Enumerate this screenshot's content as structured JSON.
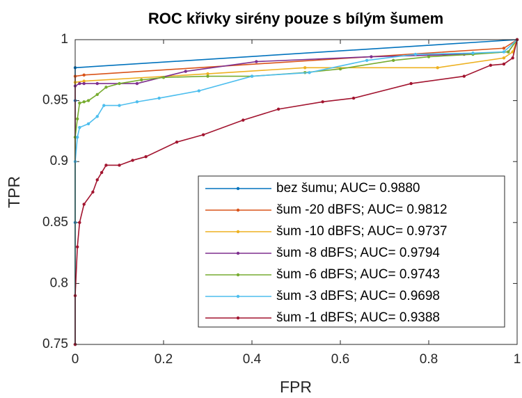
{
  "chart_data": {
    "type": "line",
    "title": "ROC křivky sirény pouze s bílým šumem",
    "xlabel": "FPR",
    "ylabel": "TPR",
    "xlim": [
      0,
      1
    ],
    "ylim": [
      0.75,
      1
    ],
    "xticks": [
      0,
      0.2,
      0.4,
      0.6,
      0.8,
      1
    ],
    "yticks": [
      0.75,
      0.8,
      0.85,
      0.9,
      0.95,
      1
    ],
    "grid": false,
    "legend_location": "southeast",
    "series": [
      {
        "name": "bez šumu; AUC= 0.9880",
        "color": "#0072BD",
        "x": [
          0,
          0,
          0,
          0,
          1
        ],
        "values": [
          0.75,
          0.85,
          0.95,
          0.977,
          1
        ]
      },
      {
        "name": "šum -20 dBFS; AUC= 0.9812",
        "color": "#D95319",
        "x": [
          0,
          0,
          0.02,
          0.97,
          1
        ],
        "values": [
          0.75,
          0.97,
          0.971,
          0.993,
          1
        ]
      },
      {
        "name": "šum -10 dBFS; AUC= 0.9737",
        "color": "#EDB120",
        "x": [
          0,
          0,
          0.02,
          0.3,
          0.52,
          0.82,
          0.97,
          0.99,
          1
        ],
        "values": [
          0.75,
          0.965,
          0.966,
          0.972,
          0.977,
          0.977,
          0.985,
          0.99,
          1
        ]
      },
      {
        "name": "šum -8 dBFS; AUC= 0.9794",
        "color": "#7E2F8E",
        "x": [
          0,
          0,
          0.01,
          0.02,
          0.05,
          0.14,
          0.25,
          0.41,
          0.67,
          0.88,
          0.98,
          1
        ],
        "values": [
          0.75,
          0.962,
          0.964,
          0.964,
          0.964,
          0.964,
          0.974,
          0.982,
          0.986,
          0.988,
          0.99,
          1
        ]
      },
      {
        "name": "šum -6 dBFS; AUC= 0.9743",
        "color": "#77AC30",
        "x": [
          0,
          0,
          0.005,
          0.01,
          0.02,
          0.03,
          0.05,
          0.07,
          0.1,
          0.15,
          0.2,
          0.3,
          0.4,
          0.52,
          0.6,
          0.72,
          0.8,
          0.9,
          0.98,
          1
        ],
        "values": [
          0.75,
          0.92,
          0.935,
          0.948,
          0.949,
          0.95,
          0.955,
          0.961,
          0.964,
          0.967,
          0.969,
          0.97,
          0.97,
          0.973,
          0.976,
          0.983,
          0.986,
          0.988,
          0.99,
          1
        ]
      },
      {
        "name": "šum -3 dBFS; AUC= 0.9698",
        "color": "#4DBEEE",
        "x": [
          0,
          0,
          0.005,
          0.01,
          0.03,
          0.05,
          0.065,
          0.1,
          0.14,
          0.19,
          0.28,
          0.4,
          0.53,
          0.66,
          0.77,
          0.9,
          0.97,
          1
        ],
        "values": [
          0.75,
          0.9,
          0.92,
          0.928,
          0.931,
          0.937,
          0.946,
          0.946,
          0.949,
          0.952,
          0.958,
          0.97,
          0.973,
          0.983,
          0.988,
          0.989,
          0.99,
          1
        ]
      },
      {
        "name": "šum -1 dBFS; AUC= 0.9388",
        "color": "#A2142F",
        "x": [
          0,
          0,
          0.005,
          0.01,
          0.02,
          0.04,
          0.05,
          0.06,
          0.07,
          0.1,
          0.13,
          0.16,
          0.23,
          0.29,
          0.38,
          0.46,
          0.56,
          0.63,
          0.76,
          0.88,
          0.94,
          0.97,
          0.99,
          1
        ],
        "values": [
          0.75,
          0.79,
          0.83,
          0.85,
          0.865,
          0.875,
          0.885,
          0.891,
          0.897,
          0.897,
          0.901,
          0.904,
          0.916,
          0.922,
          0.934,
          0.943,
          0.949,
          0.952,
          0.964,
          0.97,
          0.979,
          0.98,
          0.985,
          1
        ]
      }
    ]
  }
}
